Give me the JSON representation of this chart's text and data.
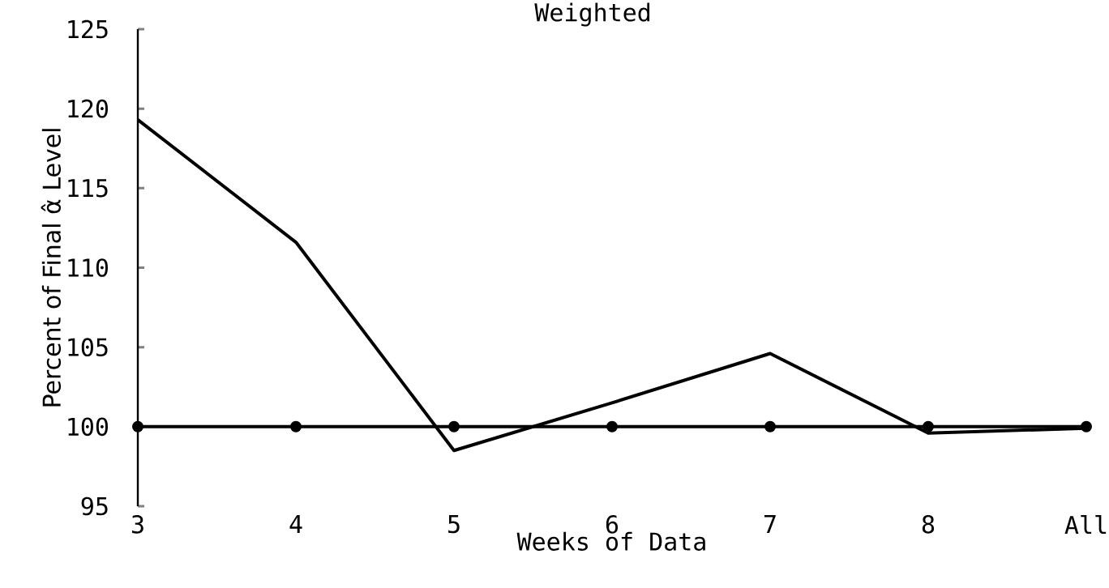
{
  "chart_data": {
    "type": "line",
    "title": "Weighted",
    "xlabel": "Weeks of Data",
    "ylabel": "Percent of Final α̂ Level",
    "categories": [
      "3",
      "4",
      "5",
      "6",
      "7",
      "8",
      "All"
    ],
    "series": [
      {
        "color": "#000000",
        "values": [
          119.3,
          111.6,
          98.5,
          101.5,
          104.6,
          99.6,
          99.9
        ],
        "marker": "none"
      },
      {
        "color": "#000000",
        "values": [
          100,
          100,
          100,
          100,
          100,
          100,
          100
        ],
        "marker": "circle"
      }
    ],
    "ylim": [
      95,
      125
    ],
    "yticks": [
      95,
      100,
      105,
      110,
      115,
      120,
      125
    ],
    "grid": false
  }
}
